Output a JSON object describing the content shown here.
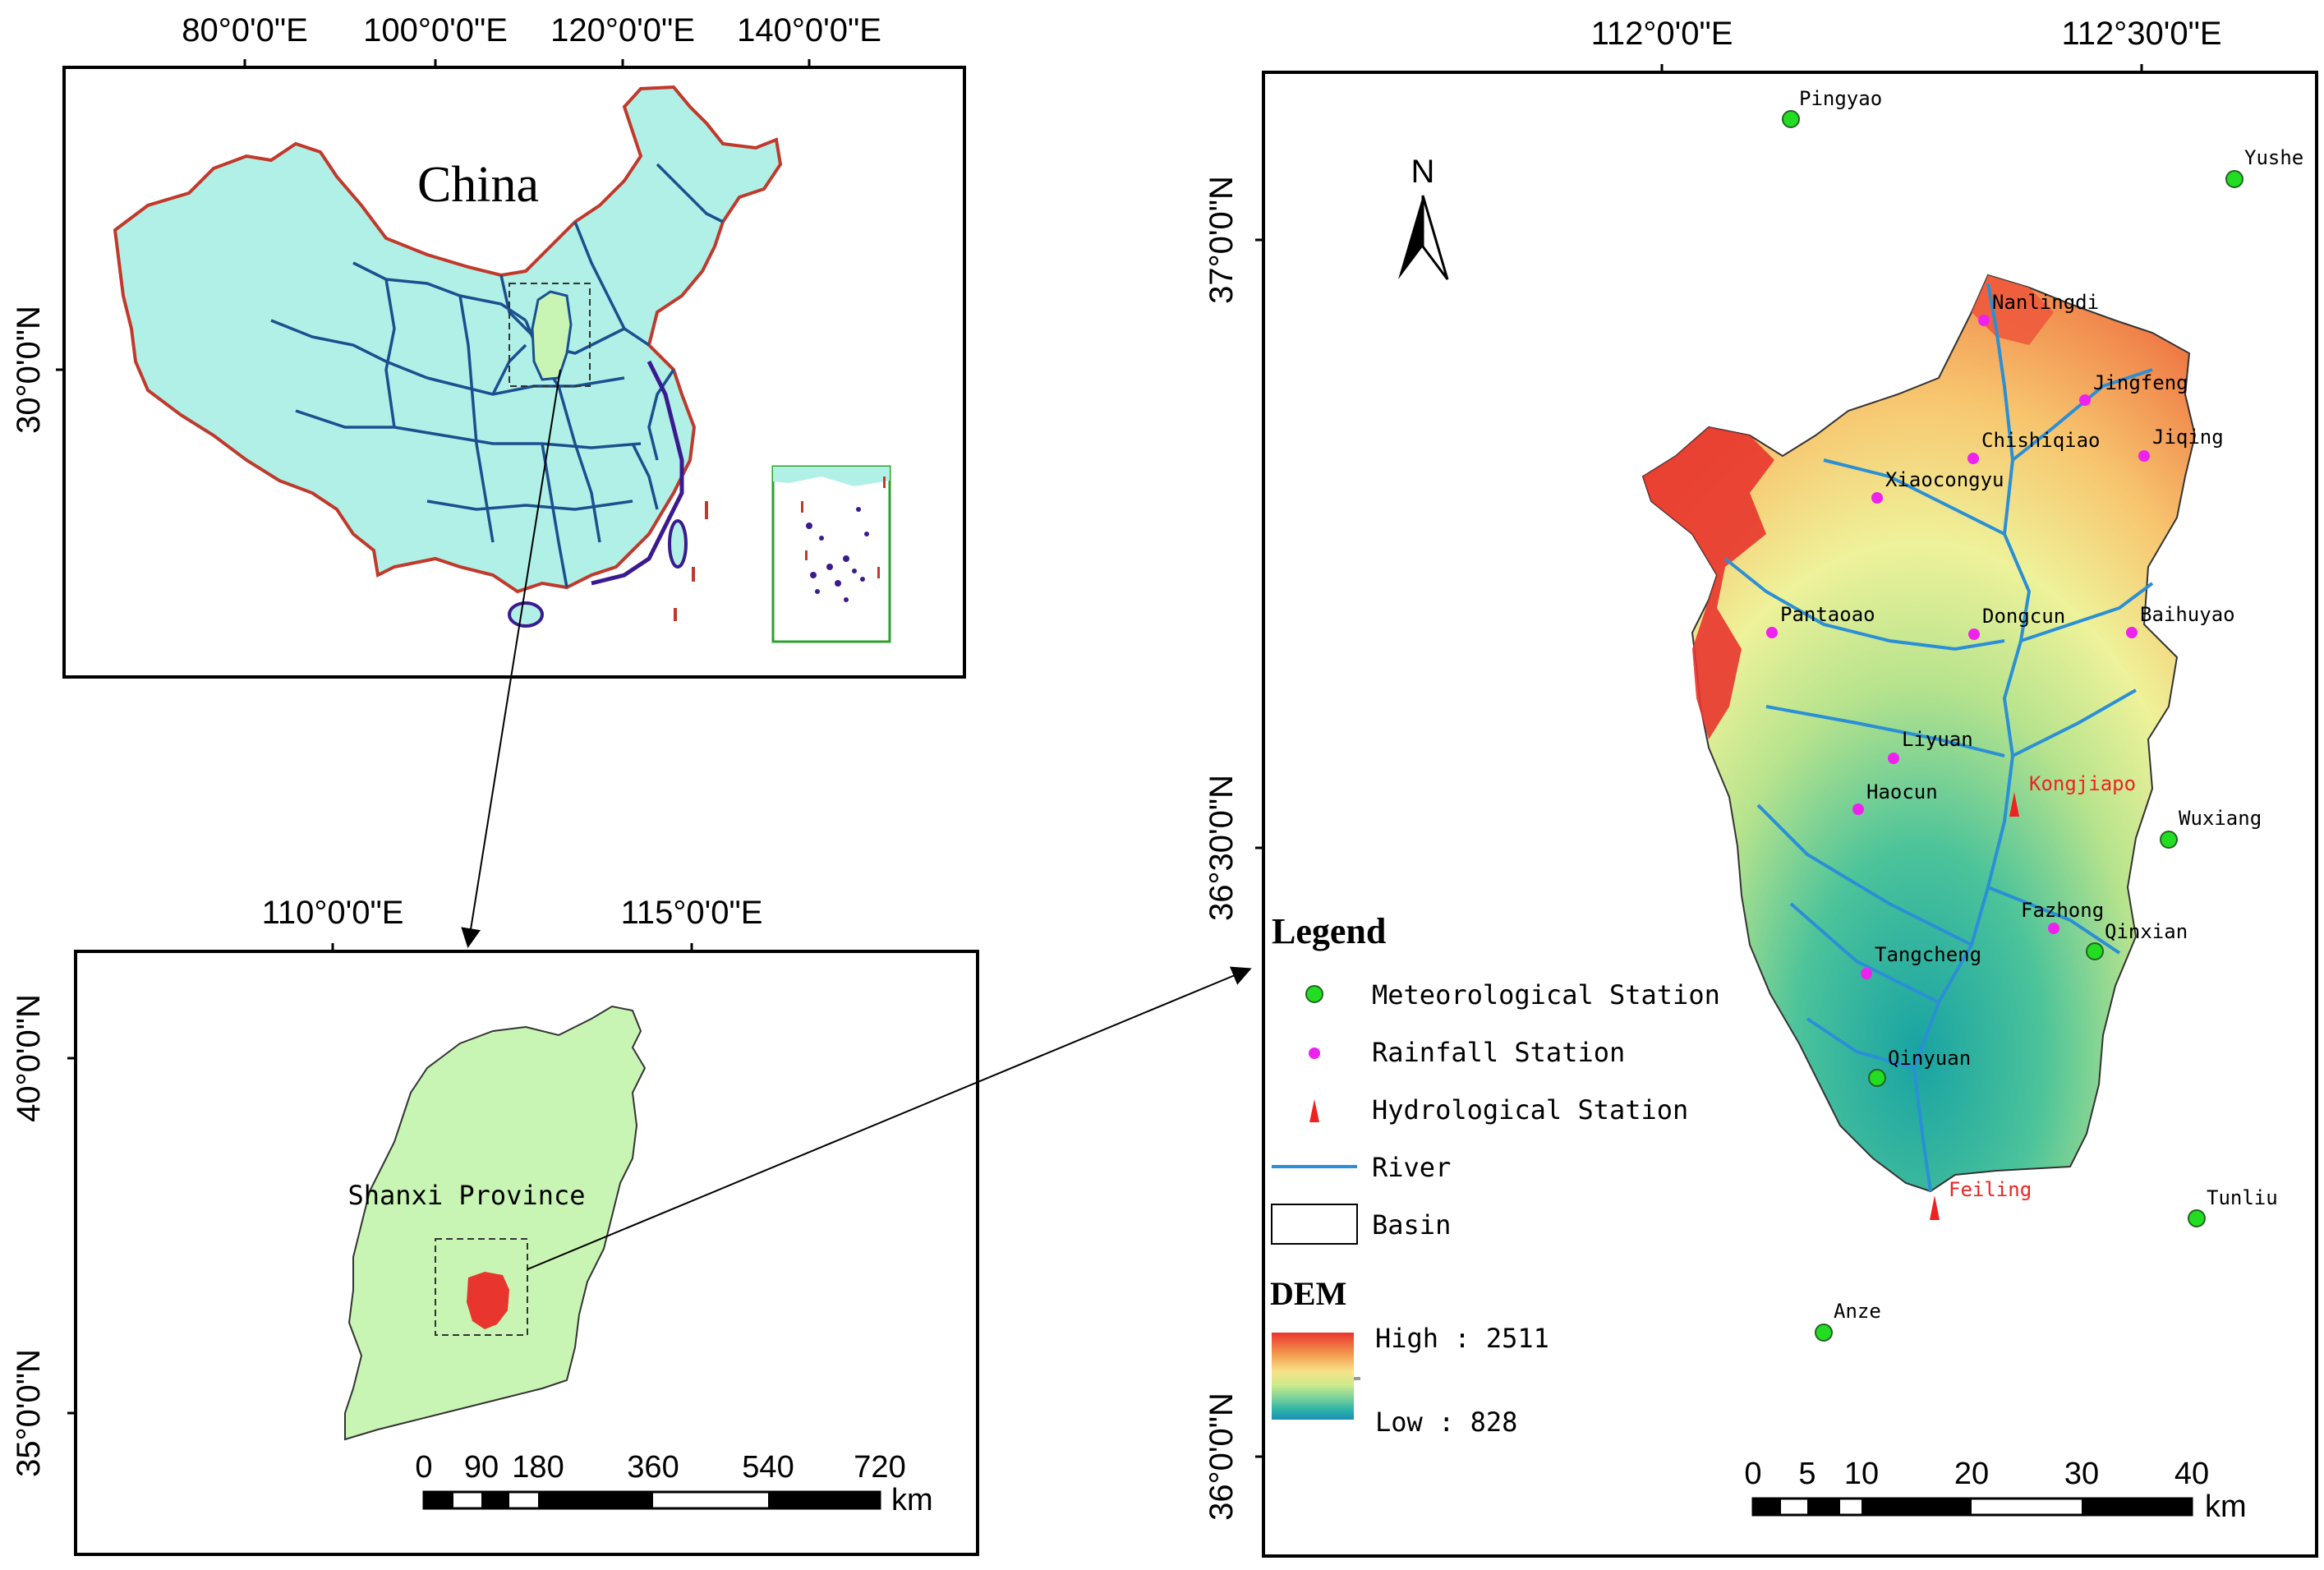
{
  "colors": {
    "china_fill": "#b0f0e6",
    "china_border": "#c0392b",
    "province_line": "#1b4f8f",
    "shanxi_fill": "#c8f5b4",
    "basin_red": "#e8352e",
    "river": "#2b8fd6",
    "met_station": "#22dd22",
    "rain_station": "#ee22ee",
    "hydro_station": "#ee2222",
    "inset_border": "#2ea02e"
  },
  "china_map": {
    "title": "China",
    "top_ticks": [
      "80°0'0\"E",
      "100°0'0\"E",
      "120°0'0\"E",
      "140°0'0\"E"
    ],
    "left_ticks": [
      "30°0'0\"N"
    ]
  },
  "shanxi_map": {
    "label": "Shanxi Province",
    "top_ticks": [
      "110°0'0\"E",
      "115°0'0\"E"
    ],
    "left_ticks": [
      "40°0'0\"N",
      "35°0'0\"N"
    ],
    "scale": {
      "labels": [
        "0",
        "90",
        "180",
        "360",
        "540",
        "720"
      ],
      "unit": "km"
    }
  },
  "basin_map": {
    "north_arrow": "N",
    "top_ticks": [
      "112°0'0\"E",
      "112°30'0\"E"
    ],
    "left_ticks": [
      "37°0'0\"N",
      "36°30'0\"N",
      "36°0'0\"N"
    ],
    "scale": {
      "labels": [
        "0",
        "5",
        "10",
        "20",
        "30",
        "40"
      ],
      "unit": "km"
    },
    "meteorological_stations": [
      "Pingyao",
      "Yushe",
      "Wuxiang",
      "Qinxian",
      "Qinyuan",
      "Tunliu",
      "Anze"
    ],
    "rainfall_stations": [
      "Nanlingdi",
      "Jingfeng",
      "Chishiqiao",
      "Jiqing",
      "Xiaocongyu",
      "Pantaoao",
      "Dongcun",
      "Baihuyao",
      "Liyuan",
      "Haocun",
      "Fazhong",
      "Tangcheng"
    ],
    "hydrological_stations": [
      "Kongjiapo",
      "Feiling"
    ]
  },
  "legend": {
    "title": "Legend",
    "items": [
      "Meteorological Station",
      "Rainfall Station",
      "Hydrological Station",
      "River",
      "Basin"
    ],
    "dem_title": "DEM",
    "dem_high": "High : 2511",
    "dem_low": "Low : 828"
  }
}
